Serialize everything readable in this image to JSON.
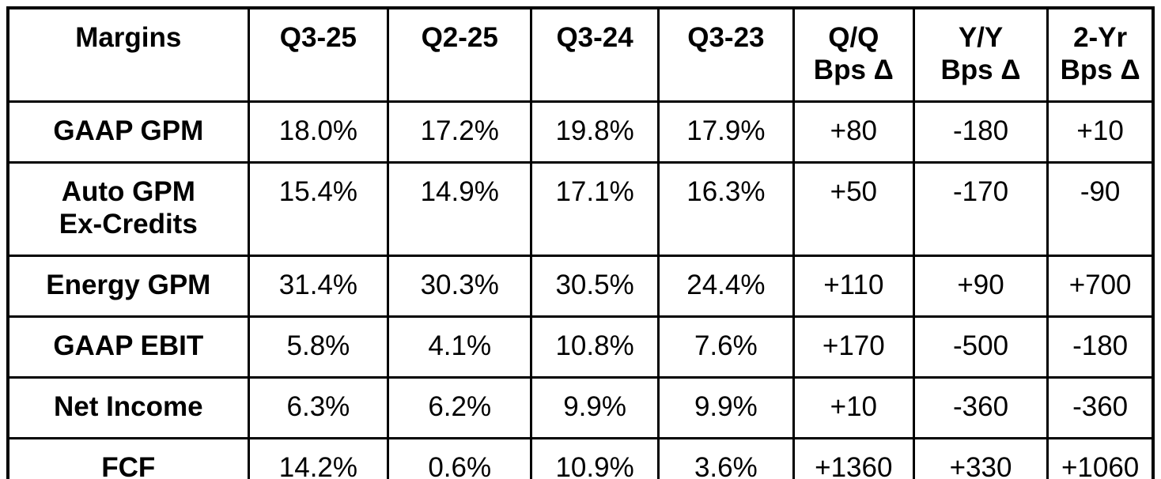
{
  "chart_data": {
    "type": "table",
    "title": "Margins",
    "columns": [
      "Margins",
      "Q3-25",
      "Q2-25",
      "Q3-24",
      "Q3-23",
      "Q/Q\nBps Δ",
      "Y/Y\nBps Δ",
      "2-Yr\nBps Δ"
    ],
    "rows": [
      {
        "label": "GAAP GPM",
        "values": [
          "18.0%",
          "17.2%",
          "19.8%",
          "17.9%",
          "+80",
          "-180",
          "+10"
        ]
      },
      {
        "label": "Auto GPM\nEx-Credits",
        "values": [
          "15.4%",
          "14.9%",
          "17.1%",
          "16.3%",
          "+50",
          "-170",
          "-90"
        ]
      },
      {
        "label": "Energy GPM",
        "values": [
          "31.4%",
          "30.3%",
          "30.5%",
          "24.4%",
          "+110",
          "+90",
          "+700"
        ]
      },
      {
        "label": "GAAP EBIT",
        "values": [
          "5.8%",
          "4.1%",
          "10.8%",
          "7.6%",
          "+170",
          "-500",
          "-180"
        ]
      },
      {
        "label": "Net Income",
        "values": [
          "6.3%",
          "6.2%",
          "9.9%",
          "9.9%",
          "+10",
          "-360",
          "-360"
        ]
      },
      {
        "label": "FCF",
        "values": [
          "14.2%",
          "0.6%",
          "10.9%",
          "3.6%",
          "+1360",
          "+330",
          "+1060"
        ]
      }
    ],
    "layout_hints": {
      "grid": "on",
      "header_bold": true,
      "row_label_bold": true,
      "text_align": "center"
    }
  },
  "colors": {
    "text": "#000000",
    "background": "#ffffff",
    "border": "#000000"
  }
}
